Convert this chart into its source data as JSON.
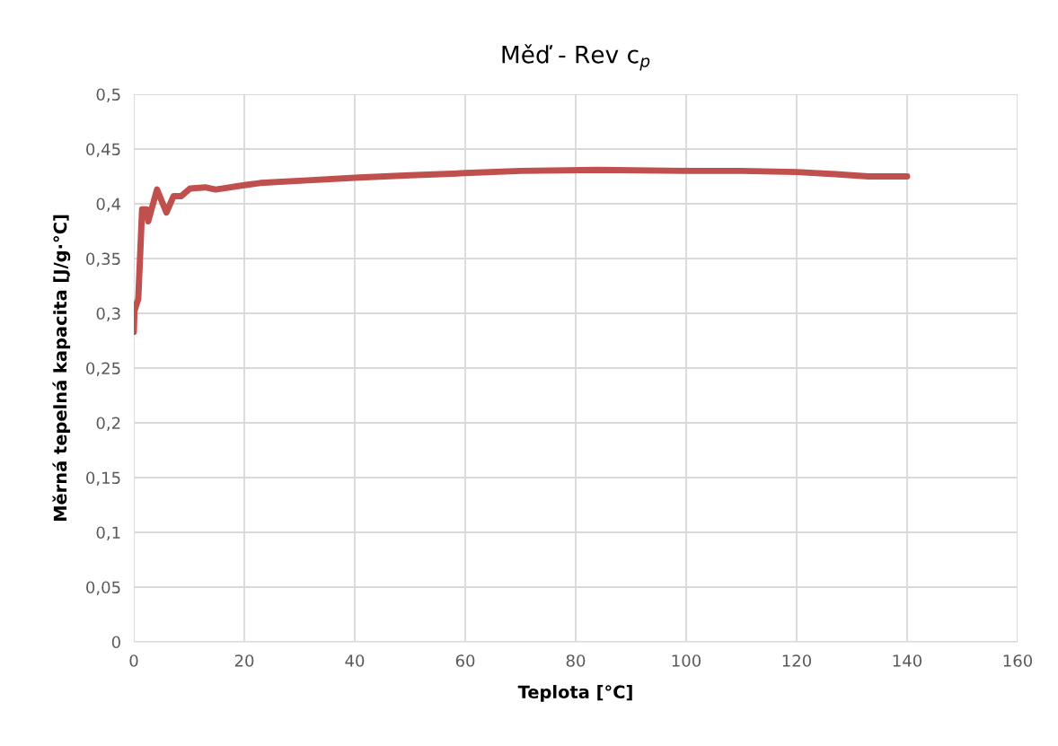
{
  "chart_data": {
    "type": "line",
    "title": "Měď - Rev c$_{p}$",
    "xlabel": "Teplota [°C]",
    "ylabel": "Měrná tepelná kapacita [J/g·°C]",
    "xlim": [
      0,
      160
    ],
    "xticks": [
      0,
      20,
      40,
      60,
      80,
      100,
      120,
      140,
      160
    ],
    "ylim": [
      0,
      0.5
    ],
    "yticks": [
      {
        "value": 0,
        "label": "0"
      },
      {
        "value": 0.05,
        "label": "0,05"
      },
      {
        "value": 0.1,
        "label": "0,1"
      },
      {
        "value": 0.15,
        "label": "0,15"
      },
      {
        "value": 0.2,
        "label": "0,2"
      },
      {
        "value": 0.25,
        "label": "0,25"
      },
      {
        "value": 0.3,
        "label": "0,3"
      },
      {
        "value": 0.35,
        "label": "0,35"
      },
      {
        "value": 0.4,
        "label": "0,4"
      },
      {
        "value": 0.45,
        "label": "0,45"
      },
      {
        "value": 0.5,
        "label": "0,5"
      }
    ],
    "grid": true,
    "marker": "none",
    "line_style": "solid",
    "series": [
      {
        "color": "#c0504d",
        "x": [
          0,
          0.1,
          0.8,
          1.5,
          2.3,
          2.6,
          4.2,
          5.9,
          7.2,
          8.6,
          10.2,
          12.9,
          14.8,
          20,
          22.9,
          30,
          40.8,
          50,
          60,
          70,
          84,
          100.6,
          110,
          120,
          127,
          133,
          140
        ],
        "values": [
          0.283,
          0.302,
          0.313,
          0.395,
          0.395,
          0.384,
          0.413,
          0.392,
          0.407,
          0.407,
          0.414,
          0.415,
          0.413,
          0.417,
          0.419,
          0.421,
          0.424,
          0.426,
          0.428,
          0.43,
          0.431,
          0.43,
          0.43,
          0.429,
          0.427,
          0.425,
          0.425
        ]
      }
    ]
  }
}
